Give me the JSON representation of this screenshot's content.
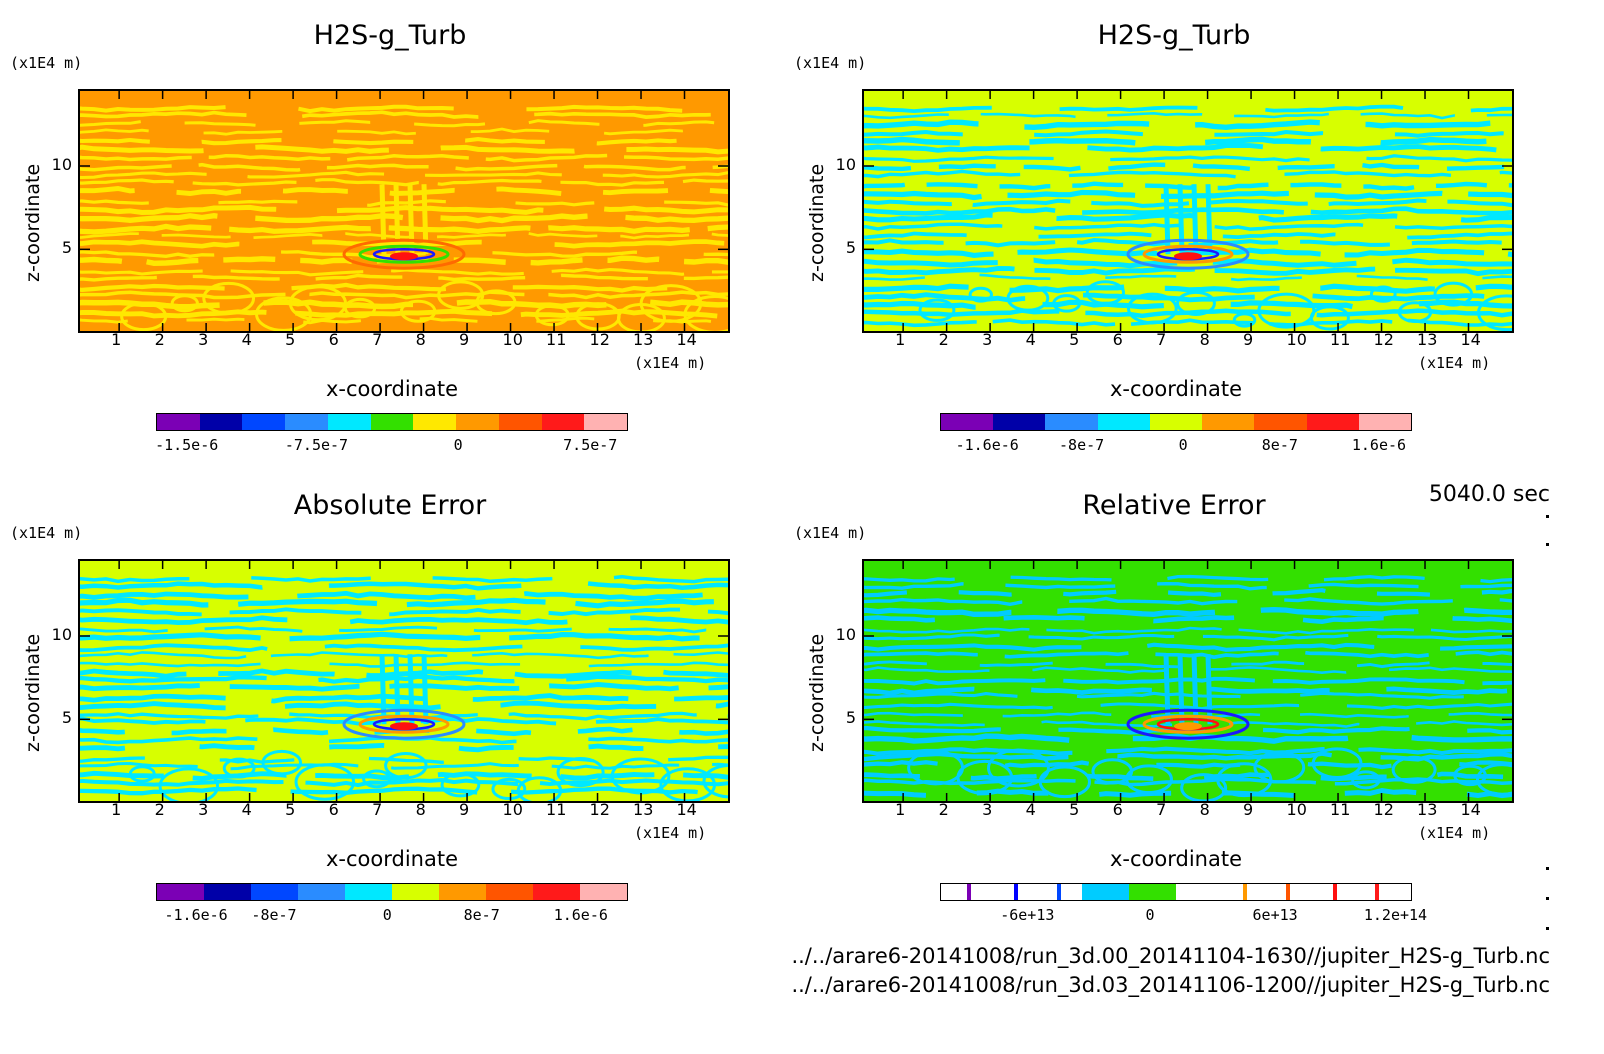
{
  "time_label": "5040.0 sec",
  "files": [
    "../../arare6-20141008/run_3d.00_20141104-1630//jupiter_H2S-g_Turb.nc",
    "../../arare6-20141008/run_3d.03_20141106-1200//jupiter_H2S-g_Turb.nc"
  ],
  "chart_data": [
    {
      "type": "heatmap",
      "title": "H2S-g_Turb",
      "xlabel": "x-coordinate",
      "ylabel": "z-coordinate",
      "x_unit": "(x1E4 m)",
      "y_unit": "(x1E4 m)",
      "xlim": [
        0.1,
        15
      ],
      "ylim": [
        0.1,
        14.5
      ],
      "x_ticks": [
        "1",
        "2",
        "3",
        "4",
        "5",
        "6",
        "7",
        "8",
        "9",
        "10",
        "11",
        "12",
        "13",
        "14"
      ],
      "y_ticks": [
        "5",
        "10"
      ],
      "background_color": "#ff9900",
      "pattern_colors": [
        "#ffe800",
        "#ff6a00",
        "#33e000",
        "#1a1aff",
        "#ff1010"
      ],
      "colorbar": {
        "colors": [
          "#7b00b5",
          "#0000a8",
          "#0047ff",
          "#2a8cff",
          "#00e8ff",
          "#33e000",
          "#ffe800",
          "#ff9900",
          "#ff5500",
          "#ff1a1a",
          "#ffb2b2"
        ],
        "labels": [
          "-1.5e-6",
          "-7.5e-7",
          "0",
          "7.5e-7"
        ],
        "label_positions": [
          0.065,
          0.34,
          0.64,
          0.92
        ]
      }
    },
    {
      "type": "heatmap",
      "title": "H2S-g_Turb",
      "xlabel": "x-coordinate",
      "ylabel": "z-coordinate",
      "x_unit": "(x1E4 m)",
      "y_unit": "(x1E4 m)",
      "xlim": [
        0.1,
        15
      ],
      "ylim": [
        0.1,
        14.5
      ],
      "x_ticks": [
        "1",
        "2",
        "3",
        "4",
        "5",
        "6",
        "7",
        "8",
        "9",
        "10",
        "11",
        "12",
        "13",
        "14"
      ],
      "y_ticks": [
        "5",
        "10"
      ],
      "background_color": "#d7ff00",
      "pattern_colors": [
        "#00e8ff",
        "#2a8cff",
        "#ff9900",
        "#1a1aff",
        "#ff1010"
      ],
      "colorbar": {
        "colors": [
          "#7b00b5",
          "#0000a8",
          "#2a8cff",
          "#00e8ff",
          "#d7ff00",
          "#ff9900",
          "#ff5500",
          "#ff1a1a",
          "#ffb2b2"
        ],
        "labels": [
          "-1.6e-6",
          "-8e-7",
          "0",
          "8e-7",
          "1.6e-6"
        ],
        "label_positions": [
          0.1,
          0.3,
          0.515,
          0.72,
          0.93
        ]
      }
    },
    {
      "type": "heatmap",
      "title": "Absolute Error",
      "xlabel": "x-coordinate",
      "ylabel": "z-coordinate",
      "x_unit": "(x1E4 m)",
      "y_unit": "(x1E4 m)",
      "xlim": [
        0.1,
        15
      ],
      "ylim": [
        0.1,
        14.5
      ],
      "x_ticks": [
        "1",
        "2",
        "3",
        "4",
        "5",
        "6",
        "7",
        "8",
        "9",
        "10",
        "11",
        "12",
        "13",
        "14"
      ],
      "y_ticks": [
        "5",
        "10"
      ],
      "background_color": "#d7ff00",
      "pattern_colors": [
        "#00e8ff",
        "#2a8cff",
        "#ff9900",
        "#1a1aff",
        "#ff1010"
      ],
      "colorbar": {
        "colors": [
          "#7b00b5",
          "#0000a8",
          "#0047ff",
          "#2a8cff",
          "#00e8ff",
          "#d7ff00",
          "#ff9900",
          "#ff5500",
          "#ff1a1a",
          "#ffb2b2"
        ],
        "labels": [
          "-1.6e-6",
          "-8e-7",
          "0",
          "8e-7",
          "1.6e-6"
        ],
        "label_positions": [
          0.085,
          0.25,
          0.49,
          0.69,
          0.9
        ]
      }
    },
    {
      "type": "heatmap",
      "title": "Relative Error",
      "xlabel": "x-coordinate",
      "ylabel": "z-coordinate",
      "x_unit": "(x1E4 m)",
      "y_unit": "(x1E4 m)",
      "xlim": [
        0.1,
        15
      ],
      "ylim": [
        0.1,
        14.5
      ],
      "x_ticks": [
        "1",
        "2",
        "3",
        "4",
        "5",
        "6",
        "7",
        "8",
        "9",
        "10",
        "11",
        "12",
        "13",
        "14"
      ],
      "y_ticks": [
        "5",
        "10"
      ],
      "background_color": "#33e000",
      "pattern_colors": [
        "#00ccff",
        "#1a1aff",
        "#ff9900",
        "#ff1010"
      ],
      "colorbar": {
        "colors": [
          "#ffffff",
          "#ffffff",
          "#ffffff",
          "#00ccff",
          "#33e000",
          "#ffffff",
          "#ffffff",
          "#ffffff",
          "#ffffff",
          "#ffffff"
        ],
        "stripes": [
          {
            "pos": 0.055,
            "color": "#7b00b5"
          },
          {
            "pos": 0.155,
            "color": "#0000ff"
          },
          {
            "pos": 0.245,
            "color": "#0047ff"
          },
          {
            "pos": 0.64,
            "color": "#ff9900"
          },
          {
            "pos": 0.73,
            "color": "#ff5500"
          },
          {
            "pos": 0.83,
            "color": "#ff1010"
          },
          {
            "pos": 0.92,
            "color": "#ff1a1a"
          }
        ],
        "labels": [
          "-6e+13",
          "0",
          "6e+13",
          "1.2e+14"
        ],
        "label_positions": [
          0.185,
          0.445,
          0.71,
          0.965
        ]
      }
    }
  ]
}
